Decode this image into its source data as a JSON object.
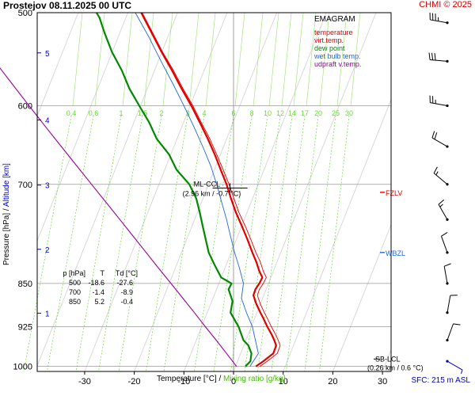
{
  "header": {
    "title": "Prostejov    08.11.2025 00 UTC",
    "credit": "CHMI © 2025"
  },
  "legend": {
    "title": "EMAGRAM",
    "items": [
      {
        "label": "temperature",
        "color": "#e00000"
      },
      {
        "label": "virt.temp.",
        "color": "#e00000"
      },
      {
        "label": "dew point",
        "color": "#008800"
      },
      {
        "label": "wet bulb temp.",
        "color": "#2266dd"
      },
      {
        "label": "udpraft v.temp.",
        "color": "#990099"
      }
    ]
  },
  "axes": {
    "x_label": "Temperature [°C]  / ",
    "x_label_mix": " Mixing ratio [g/kg]",
    "y_label": "Pressure [hPa]  / ",
    "y_label_alt": " Altitude [km]",
    "sfc": "SFC: 215 m ASL"
  },
  "table": {
    "header": [
      "p [hPa]",
      "T",
      "Td [°C]"
    ],
    "rows": [
      [
        "500",
        "-18.6",
        "-27.6"
      ],
      [
        "700",
        "-1.4",
        "-8.9"
      ],
      [
        "850",
        "5.2",
        "-0.4"
      ]
    ]
  },
  "annotations": {
    "mlccl": "ML-CCL",
    "mlccl_values": "(2.96 km / -0.7 °C)",
    "sblcl": "SB-LCL",
    "sblcl_values": "(0.26 km / 0.6 °C)",
    "fzlv": "FZLV",
    "wbzl": "WBZL"
  },
  "colors": {
    "temperature": "#e00000",
    "dewpoint": "#008800",
    "wetbulb": "#2266dd",
    "parcel": "#990099",
    "mixing": "#66dd33",
    "altitude": "#0000cc",
    "isobar": "#999999",
    "wind": "#000000"
  },
  "chart_data": {
    "type": "line",
    "title": "EMAGRAM",
    "xlabel": "Temperature [°C]",
    "ylabel": "Pressure [hPa]",
    "xlim": [
      -40,
      33
    ],
    "ylim": [
      1010,
      500
    ],
    "y_scale": "log",
    "x_ticks": [
      -30,
      -20,
      -10,
      0,
      10,
      20,
      30
    ],
    "p_ticks": [
      500,
      600,
      700,
      850,
      925,
      1000
    ],
    "altitude_ticks": [
      {
        "km": 1,
        "p": 901
      },
      {
        "km": 2,
        "p": 795
      },
      {
        "km": 3,
        "p": 701
      },
      {
        "km": 4,
        "p": 617
      },
      {
        "km": 5,
        "p": 541
      }
    ],
    "mixing_ratio_labels": [
      "0.4",
      "0.6",
      "1",
      "1.5",
      "2",
      "3",
      "4",
      "6",
      "8",
      "10",
      "12",
      "14",
      "17",
      "20",
      "25",
      "30"
    ],
    "series": [
      {
        "name": "temperature",
        "p": [
          1000,
          990,
          975,
          960,
          950,
          940,
          925,
          910,
          900,
          885,
          870,
          860,
          850,
          840,
          830,
          815,
          800,
          780,
          760,
          740,
          720,
          700,
          680,
          660,
          640,
          620,
          600,
          580,
          560,
          540,
          520,
          500
        ],
        "t": [
          4.5,
          6,
          8,
          8.6,
          8.2,
          7.7,
          6.8,
          6.0,
          5.4,
          4.6,
          4.0,
          4.4,
          5.2,
          5.8,
          5.2,
          4.6,
          3.8,
          2.8,
          1.7,
          0.5,
          -0.5,
          -1.4,
          -2.6,
          -3.8,
          -5.2,
          -6.8,
          -8.5,
          -10.5,
          -12.4,
          -14.5,
          -16.5,
          -18.6
        ]
      },
      {
        "name": "virt.temp.",
        "p": [
          1000,
          990,
          975,
          960,
          950,
          940,
          925,
          910,
          900,
          885,
          870,
          860,
          850,
          840,
          830,
          815,
          800,
          780,
          760,
          740,
          720,
          700,
          680,
          660,
          640,
          620,
          600,
          580,
          560,
          540,
          520,
          500
        ],
        "t": [
          5.3,
          6.8,
          8.8,
          9.4,
          9.0,
          8.5,
          7.6,
          6.8,
          6.2,
          5.4,
          4.8,
          5.2,
          6.0,
          6.6,
          6.0,
          5.4,
          4.5,
          3.5,
          2.4,
          1.1,
          0.1,
          -0.9,
          -2.1,
          -3.4,
          -4.8,
          -6.5,
          -8.2,
          -10.2,
          -12.1,
          -14.3,
          -16.3,
          -18.4
        ]
      },
      {
        "name": "dew point",
        "p": [
          1000,
          990,
          975,
          960,
          950,
          925,
          900,
          880,
          860,
          850,
          840,
          820,
          800,
          780,
          760,
          740,
          720,
          700,
          680,
          660,
          640,
          620,
          600,
          580,
          560,
          540,
          520,
          505,
          500
        ],
        "t": [
          2.4,
          3.4,
          3.6,
          3.0,
          2.0,
          1.0,
          -0.6,
          -0.2,
          -1.0,
          -0.4,
          -2.5,
          -3.8,
          -5.0,
          -5.6,
          -6.2,
          -6.8,
          -7.5,
          -8.9,
          -11.5,
          -13.0,
          -15.5,
          -17.0,
          -19.0,
          -21.0,
          -22.5,
          -24.5,
          -26.0,
          -27.0,
          -27.6
        ]
      },
      {
        "name": "wet bulb temp.",
        "p": [
          1000,
          975,
          950,
          925,
          900,
          875,
          850,
          825,
          800,
          775,
          750,
          725,
          700,
          675,
          650,
          625,
          600,
          575,
          550,
          525,
          500
        ],
        "t": [
          3.3,
          5.0,
          4.4,
          3.8,
          2.6,
          1.6,
          2.0,
          1.2,
          0.2,
          -0.6,
          -1.4,
          -2.4,
          -3.4,
          -4.6,
          -6.2,
          -8.0,
          -10.0,
          -12.2,
          -14.6,
          -17.0,
          -19.8
        ]
      },
      {
        "name": "udpraft v.temp.",
        "p": [
          1000,
          975,
          950,
          925,
          900,
          875,
          850,
          825,
          800,
          775,
          750,
          725,
          700,
          675,
          650,
          625,
          600,
          575,
          550,
          525,
          500
        ],
        "t": [
          0.6,
          -1.4,
          -3.5,
          -5.7,
          -7.9,
          -10.2,
          -12.6,
          -15.1,
          -17.6,
          -20.2,
          -22.9,
          -25.7,
          -28.6,
          -31.6,
          -34.7,
          -37.9,
          -41.2,
          -44.6,
          -48.1,
          -51.7,
          -55.4
        ]
      }
    ],
    "levels": {
      "mlccl": {
        "p": 705,
        "t": -0.7
      },
      "sblcl": {
        "p": 995,
        "t": 0.6
      },
      "fzlv_p": 711,
      "wbzl_p": 800
    },
    "winds": [
      {
        "p": 510,
        "dir": 280,
        "kt": 35
      },
      {
        "p": 550,
        "dir": 275,
        "kt": 30
      },
      {
        "p": 600,
        "dir": 280,
        "kt": 25
      },
      {
        "p": 650,
        "dir": 300,
        "kt": 20
      },
      {
        "p": 700,
        "dir": 310,
        "kt": 15
      },
      {
        "p": 750,
        "dir": 330,
        "kt": 15
      },
      {
        "p": 800,
        "dir": 340,
        "kt": 10
      },
      {
        "p": 850,
        "dir": 350,
        "kt": 10
      },
      {
        "p": 900,
        "dir": 10,
        "kt": 10
      },
      {
        "p": 950,
        "dir": 20,
        "kt": 10
      },
      {
        "p": 990,
        "dir": 120,
        "kt": 5
      }
    ]
  }
}
